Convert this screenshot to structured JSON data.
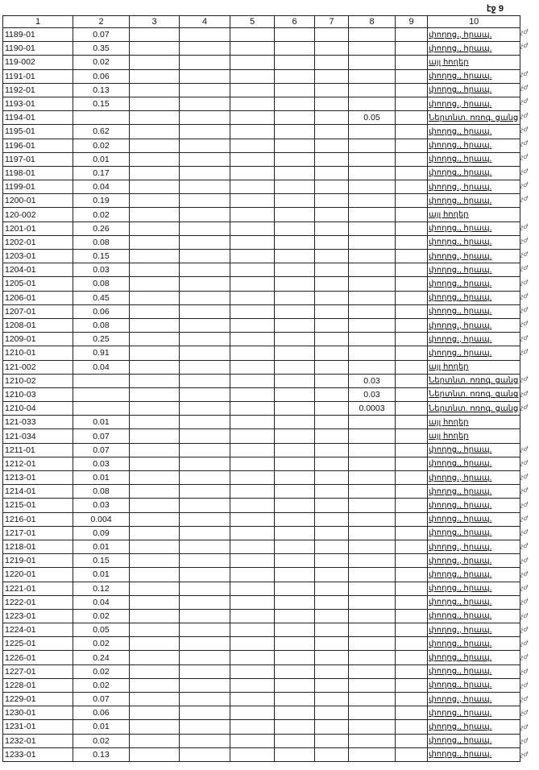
{
  "page_label": "էջ 9",
  "columns": [
    "1",
    "2",
    "3",
    "4",
    "5",
    "6",
    "7",
    "8",
    "9",
    "10"
  ],
  "land_types": {
    "p": "փողոց., հրապ.",
    "a": "այլ հողեր",
    "n": "Ներտնտ. ոռոգ. ցանց"
  },
  "margin_mark": "չժ",
  "rows": [
    [
      "1189-01",
      "0.07",
      "",
      "p"
    ],
    [
      "1190-01",
      "0.35",
      "",
      "p"
    ],
    [
      "119-002",
      "0.02",
      "",
      "a"
    ],
    [
      "1191-01",
      "0.06",
      "",
      "p"
    ],
    [
      "1192-01",
      "0.13",
      "",
      "p"
    ],
    [
      "1193-01",
      "0.15",
      "",
      "p"
    ],
    [
      "1194-01",
      "",
      "0.05",
      "n"
    ],
    [
      "1195-01",
      "0.62",
      "",
      "p"
    ],
    [
      "1196-01",
      "0.02",
      "",
      "p"
    ],
    [
      "1197-01",
      "0.01",
      "",
      "p"
    ],
    [
      "1198-01",
      "0.17",
      "",
      "p"
    ],
    [
      "1199-01",
      "0.04",
      "",
      "p"
    ],
    [
      "1200-01",
      "0.19",
      "",
      "p"
    ],
    [
      "120-002",
      "0.02",
      "",
      "a"
    ],
    [
      "1201-01",
      "0.26",
      "",
      "p"
    ],
    [
      "1202-01",
      "0.08",
      "",
      "p"
    ],
    [
      "1203-01",
      "0.15",
      "",
      "p"
    ],
    [
      "1204-01",
      "0.03",
      "",
      "p"
    ],
    [
      "1205-01",
      "0.08",
      "",
      "p"
    ],
    [
      "1206-01",
      "0.45",
      "",
      "p"
    ],
    [
      "1207-01",
      "0.06",
      "",
      "p"
    ],
    [
      "1208-01",
      "0.08",
      "",
      "p"
    ],
    [
      "1209-01",
      "0.25",
      "",
      "p"
    ],
    [
      "1210-01",
      "0.91",
      "",
      "p"
    ],
    [
      "121-002",
      "0.04",
      "",
      "a"
    ],
    [
      "1210-02",
      "",
      "0.03",
      "n"
    ],
    [
      "1210-03",
      "",
      "0.03",
      "n"
    ],
    [
      "1210-04",
      "",
      "0.0003",
      "n"
    ],
    [
      "121-033",
      "0.01",
      "",
      "a"
    ],
    [
      "121-034",
      "0.07",
      "",
      "a"
    ],
    [
      "1211-01",
      "0.07",
      "",
      "p"
    ],
    [
      "1212-01",
      "0.03",
      "",
      "p"
    ],
    [
      "1213-01",
      "0.01",
      "",
      "p"
    ],
    [
      "1214-01",
      "0.08",
      "",
      "p"
    ],
    [
      "1215-01",
      "0.03",
      "",
      "p"
    ],
    [
      "1216-01",
      "0.004",
      "",
      "p"
    ],
    [
      "1217-01",
      "0.09",
      "",
      "p"
    ],
    [
      "1218-01",
      "0.01",
      "",
      "p"
    ],
    [
      "1219-01",
      "0.15",
      "",
      "p"
    ],
    [
      "1220-01",
      "0.01",
      "",
      "p"
    ],
    [
      "1221-01",
      "0.12",
      "",
      "p"
    ],
    [
      "1222-01",
      "0.04",
      "",
      "p"
    ],
    [
      "1223-01",
      "0.02",
      "",
      "p"
    ],
    [
      "1224-01",
      "0.05",
      "",
      "p"
    ],
    [
      "1225-01",
      "0.02",
      "",
      "p"
    ],
    [
      "1226-01",
      "0.24",
      "",
      "p"
    ],
    [
      "1227-01",
      "0.02",
      "",
      "p"
    ],
    [
      "1228-01",
      "0.02",
      "",
      "p"
    ],
    [
      "1229-01",
      "0.07",
      "",
      "p"
    ],
    [
      "1230-01",
      "0.06",
      "",
      "p"
    ],
    [
      "1231-01",
      "0.01",
      "",
      "p"
    ],
    [
      "1232-01",
      "0.02",
      "",
      "p"
    ],
    [
      "1233-01",
      "0.13",
      "",
      "p"
    ]
  ]
}
